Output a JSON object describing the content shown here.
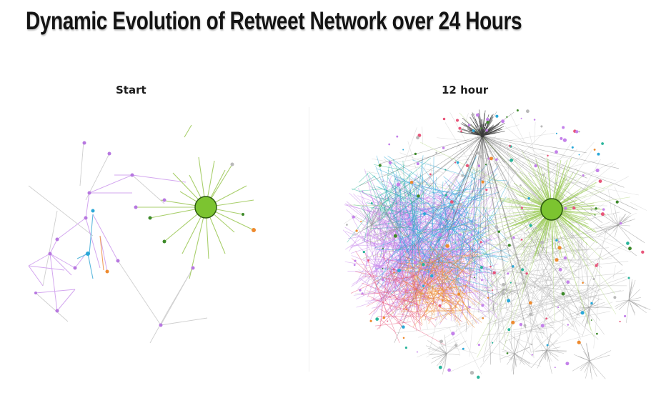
{
  "title": "Dynamic Evolution of Retweet Network over 24 Hours",
  "panels": [
    {
      "label": "Start"
    },
    {
      "label": "12 hour"
    }
  ],
  "colors": {
    "hub": "#7cc430",
    "hub_edge": "#2d5a10",
    "green_edges": "#9ccc58",
    "purple": "#c481ea",
    "blue": "#2aa8d8",
    "orange": "#ee8a2e",
    "teal": "#2ab59b",
    "pink": "#e8557a",
    "gray": "#b9b9b9",
    "dark": "#3b3b3b"
  }
}
